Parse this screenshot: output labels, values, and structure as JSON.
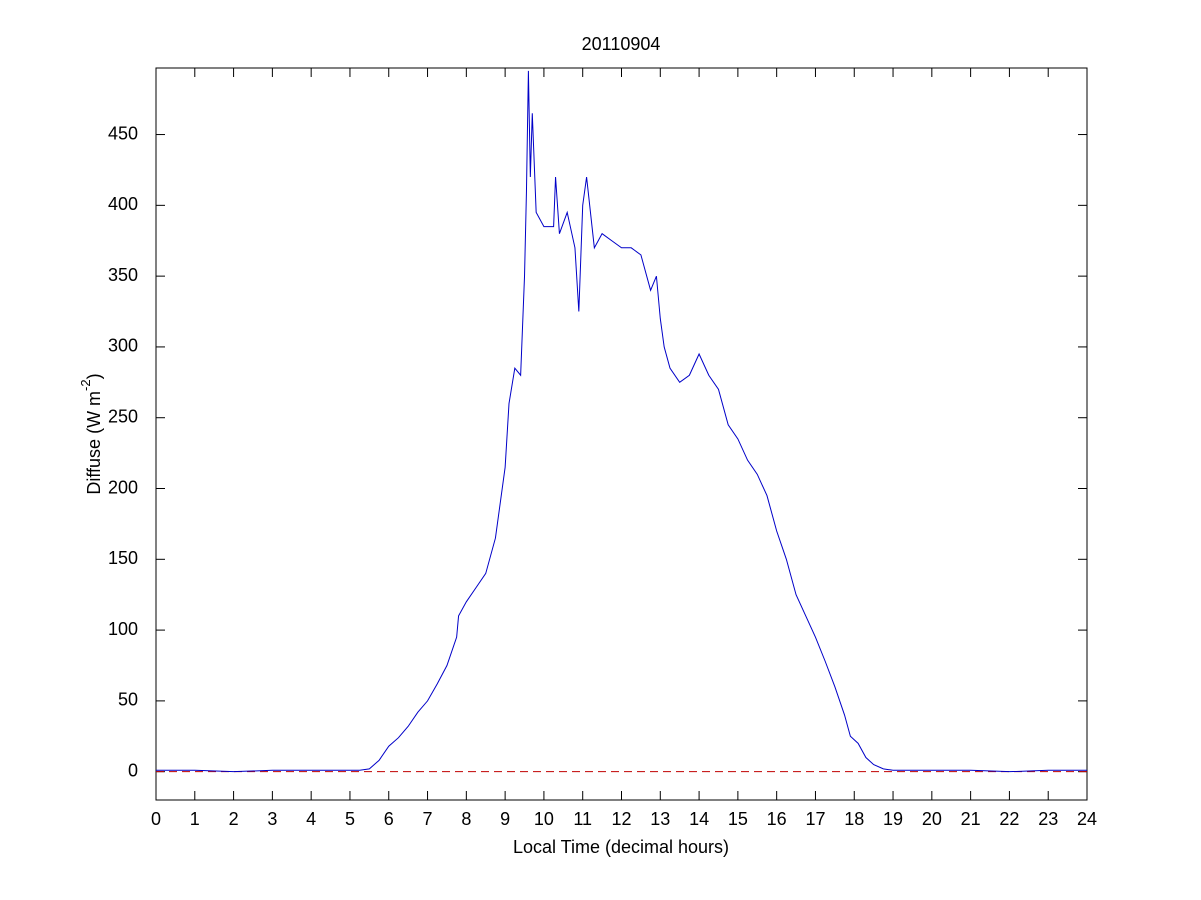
{
  "chart_data": {
    "type": "line",
    "title": "20110904",
    "xlabel": "Local Time (decimal hours)",
    "ylabel": {
      "text": "Diffuse (W m",
      "superscript": "-2",
      "end": ")"
    },
    "x": [
      0,
      1,
      2,
      3,
      4,
      5,
      5.25,
      5.5,
      5.75,
      6,
      6.25,
      6.5,
      6.75,
      7,
      7.25,
      7.5,
      7.75,
      7.8,
      8,
      8.25,
      8.5,
      8.75,
      9,
      9.1,
      9.25,
      9.4,
      9.5,
      9.55,
      9.6,
      9.65,
      9.7,
      9.8,
      10,
      10.25,
      10.3,
      10.4,
      10.6,
      10.8,
      10.9,
      11,
      11.1,
      11.3,
      11.5,
      11.75,
      12,
      12.25,
      12.5,
      12.75,
      12.9,
      13,
      13.1,
      13.25,
      13.5,
      13.75,
      14,
      14.25,
      14.5,
      14.75,
      15,
      15.25,
      15.5,
      15.75,
      16,
      16.25,
      16.5,
      16.75,
      17,
      17.25,
      17.5,
      17.75,
      17.9,
      18.1,
      18.3,
      18.5,
      18.75,
      19,
      20,
      21,
      22,
      23,
      24
    ],
    "series": [
      {
        "color": "#0000c8",
        "values": [
          1,
          1,
          0,
          1,
          1,
          1,
          1,
          2,
          8,
          18,
          24,
          32,
          42,
          50,
          62,
          75,
          95,
          110,
          120,
          130,
          140,
          165,
          215,
          260,
          285,
          280,
          350,
          410,
          495,
          420,
          465,
          395,
          385,
          385,
          420,
          380,
          395,
          370,
          325,
          400,
          420,
          370,
          380,
          375,
          370,
          370,
          365,
          340,
          350,
          320,
          300,
          285,
          275,
          280,
          295,
          280,
          270,
          245,
          235,
          220,
          210,
          195,
          170,
          150,
          125,
          110,
          95,
          78,
          60,
          40,
          25,
          20,
          10,
          5,
          2,
          1,
          1,
          1,
          0,
          1,
          1
        ]
      }
    ],
    "hline": {
      "value": 0,
      "color": "#c00000",
      "dash": "dashed"
    },
    "xlim": [
      0,
      24
    ],
    "xticks": [
      0,
      1,
      2,
      3,
      4,
      5,
      6,
      7,
      8,
      9,
      10,
      11,
      12,
      13,
      14,
      15,
      16,
      17,
      18,
      19,
      20,
      21,
      22,
      23,
      24
    ],
    "ylim": [
      -20,
      497
    ],
    "yticks": [
      0,
      50,
      100,
      150,
      200,
      250,
      300,
      350,
      400,
      450
    ]
  }
}
